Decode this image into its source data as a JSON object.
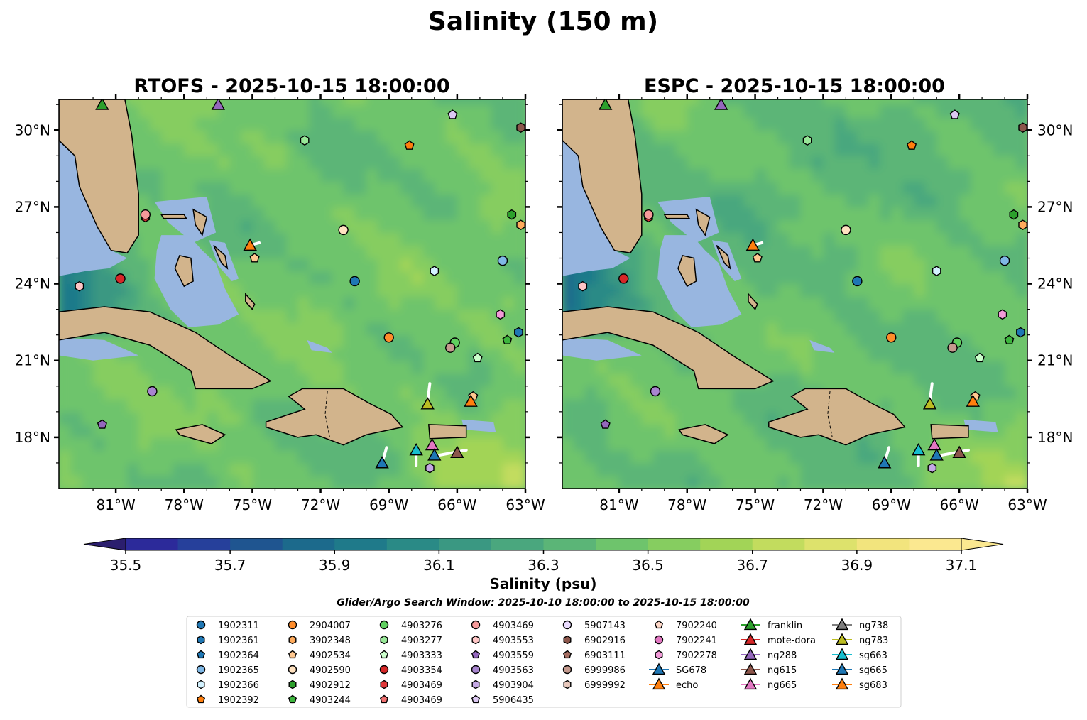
{
  "figure_title": "Salinity (150 m)",
  "chart_data": [
    {
      "type": "heatmap",
      "title": "RTOFS - 2025-10-15 18:00:00",
      "model": "RTOFS",
      "xlim": [
        -83,
        -63
      ],
      "ylim": [
        16,
        31
      ],
      "x_ticks": [
        "81°W",
        "78°W",
        "75°W",
        "72°W",
        "69°W",
        "66°W",
        "63°W"
      ],
      "y_ticks": [
        "30°N",
        "27°N",
        "24°N",
        "21°N",
        "18°N"
      ],
      "y_tick_side": "left",
      "field": "salinity at 150 m, mostly 36.5–37.0 psu"
    },
    {
      "type": "heatmap",
      "title": "ESPC - 2025-10-15 18:00:00",
      "model": "ESPC",
      "xlim": [
        -83,
        -63
      ],
      "ylim": [
        16,
        31
      ],
      "x_ticks": [
        "81°W",
        "78°W",
        "75°W",
        "72°W",
        "69°W",
        "66°W",
        "63°W"
      ],
      "y_ticks": [
        "30°N",
        "27°N",
        "24°N",
        "21°N",
        "18°N"
      ],
      "y_tick_side": "right",
      "field": "salinity at 150 m, mostly 36.5–36.9 psu"
    }
  ],
  "colorbar": {
    "label": "Salinity (psu)",
    "range": [
      35.5,
      37.1
    ],
    "ticks": [
      "35.5",
      "35.7",
      "35.9",
      "36.1",
      "36.3",
      "36.5",
      "36.7",
      "36.9",
      "37.1"
    ],
    "extend": "both",
    "colors": [
      "#2b1e6e",
      "#2c2a9a",
      "#26409b",
      "#1f5590",
      "#1c6a8c",
      "#1f7a8a",
      "#2a8a86",
      "#3a9882",
      "#4aa77e",
      "#5bb577",
      "#6ec46c",
      "#86cd60",
      "#a2d457",
      "#c2dc5e",
      "#dde26c",
      "#f2e47d",
      "#fbe890"
    ]
  },
  "search_window": "Glider/Argo Search Window: 2025-10-10 18:00:00 to 2025-10-15 18:00:00",
  "legend": [
    {
      "label": "1902311",
      "color": "#1f77b4",
      "marker": "circle"
    },
    {
      "label": "1902361",
      "color": "#1f77b4",
      "marker": "hexagon"
    },
    {
      "label": "1902364",
      "color": "#1f77b4",
      "marker": "pentagon"
    },
    {
      "label": "1902365",
      "color": "#7fb8e6",
      "marker": "circle"
    },
    {
      "label": "1902366",
      "color": "#d3f2ff",
      "marker": "hexagon"
    },
    {
      "label": "1902392",
      "color": "#ff7f0e",
      "marker": "pentagon"
    },
    {
      "label": "2904007",
      "color": "#ff8c2a",
      "marker": "circle"
    },
    {
      "label": "3902348",
      "color": "#ffab5c",
      "marker": "hexagon"
    },
    {
      "label": "4902534",
      "color": "#ffc890",
      "marker": "pentagon"
    },
    {
      "label": "4902590",
      "color": "#ffe2c0",
      "marker": "circle"
    },
    {
      "label": "4902912",
      "color": "#2ca02c",
      "marker": "hexagon"
    },
    {
      "label": "4903244",
      "color": "#3db53d",
      "marker": "pentagon"
    },
    {
      "label": "4903276",
      "color": "#5fd05f",
      "marker": "circle"
    },
    {
      "label": "4903277",
      "color": "#98e898",
      "marker": "hexagon"
    },
    {
      "label": "4903333",
      "color": "#ccffcc",
      "marker": "pentagon"
    },
    {
      "label": "4903354",
      "color": "#d62728",
      "marker": "circle"
    },
    {
      "label": "4903469",
      "color": "#e0383a",
      "marker": "hexagon"
    },
    {
      "label": "4903469",
      "color": "#f07070",
      "marker": "pentagon"
    },
    {
      "label": "4903469",
      "color": "#f59a9a",
      "marker": "circle"
    },
    {
      "label": "4903553",
      "color": "#ffc6c6",
      "marker": "hexagon"
    },
    {
      "label": "4903559",
      "color": "#9467bd",
      "marker": "pentagon"
    },
    {
      "label": "4903563",
      "color": "#a885cf",
      "marker": "circle"
    },
    {
      "label": "4903904",
      "color": "#c4a8e4",
      "marker": "hexagon"
    },
    {
      "label": "5906435",
      "color": "#dcc8f2",
      "marker": "pentagon"
    },
    {
      "label": "5907143",
      "color": "#eadcff",
      "marker": "circle"
    },
    {
      "label": "6902916",
      "color": "#8c564b",
      "marker": "hexagon"
    },
    {
      "label": "6903111",
      "color": "#a66e62",
      "marker": "pentagon"
    },
    {
      "label": "6999986",
      "color": "#c49a8e",
      "marker": "circle"
    },
    {
      "label": "6999992",
      "color": "#e8c8bc",
      "marker": "hexagon"
    },
    {
      "label": "7902240",
      "color": "#ffd8c8",
      "marker": "pentagon"
    },
    {
      "label": "7902241",
      "color": "#e377c2",
      "marker": "circle"
    },
    {
      "label": "7902278",
      "color": "#f29ad8",
      "marker": "hexagon"
    },
    {
      "label": "SG678",
      "color": "#1f77b4",
      "marker": "triangle",
      "line": true
    },
    {
      "label": "echo",
      "color": "#ff7f0e",
      "marker": "triangle",
      "line": true
    },
    {
      "label": "franklin",
      "color": "#2ca02c",
      "marker": "triangle",
      "line": true
    },
    {
      "label": "mote-dora",
      "color": "#d62728",
      "marker": "triangle",
      "line": true
    },
    {
      "label": "ng288",
      "color": "#9467bd",
      "marker": "triangle",
      "line": true
    },
    {
      "label": "ng615",
      "color": "#8c564b",
      "marker": "triangle",
      "line": true
    },
    {
      "label": "ng665",
      "color": "#e377c2",
      "marker": "triangle",
      "line": true
    },
    {
      "label": "ng738",
      "color": "#7f7f7f",
      "marker": "triangle",
      "line": true
    },
    {
      "label": "ng783",
      "color": "#bcbd22",
      "marker": "triangle",
      "line": true
    },
    {
      "label": "sg663",
      "color": "#17becf",
      "marker": "triangle",
      "line": true
    },
    {
      "label": "sg665",
      "color": "#1f77b4",
      "marker": "triangle",
      "line": true
    },
    {
      "label": "sg683",
      "color": "#ff7f0e",
      "marker": "triangle",
      "line": true
    }
  ],
  "platforms": [
    {
      "lon": -70.5,
      "lat": 24.1,
      "color": "#1f77b4",
      "marker": "circle"
    },
    {
      "lon": -63.3,
      "lat": 22.1,
      "color": "#1f77b4",
      "marker": "hexagon"
    },
    {
      "lon": -64.0,
      "lat": 24.9,
      "color": "#7fb8e6",
      "marker": "circle"
    },
    {
      "lon": -67.0,
      "lat": 24.5,
      "color": "#d3f2ff",
      "marker": "hexagon"
    },
    {
      "lon": -68.1,
      "lat": 29.4,
      "color": "#ff7f0e",
      "marker": "pentagon"
    },
    {
      "lon": -69.0,
      "lat": 21.9,
      "color": "#ff8c2a",
      "marker": "circle"
    },
    {
      "lon": -63.2,
      "lat": 26.3,
      "color": "#ffab5c",
      "marker": "hexagon"
    },
    {
      "lon": -65.3,
      "lat": 19.6,
      "color": "#ffc890",
      "marker": "pentagon"
    },
    {
      "lon": -74.9,
      "lat": 25.0,
      "color": "#ffc890",
      "marker": "pentagon"
    },
    {
      "lon": -71.0,
      "lat": 26.1,
      "color": "#ffe2c0",
      "marker": "circle"
    },
    {
      "lon": -63.6,
      "lat": 26.7,
      "color": "#2ca02c",
      "marker": "hexagon"
    },
    {
      "lon": -63.8,
      "lat": 21.8,
      "color": "#3db53d",
      "marker": "pentagon"
    },
    {
      "lon": -66.1,
      "lat": 21.7,
      "color": "#5fd05f",
      "marker": "circle"
    },
    {
      "lon": -72.7,
      "lat": 29.6,
      "color": "#98e898",
      "marker": "hexagon"
    },
    {
      "lon": -65.1,
      "lat": 21.1,
      "color": "#ccffcc",
      "marker": "pentagon"
    },
    {
      "lon": -80.8,
      "lat": 24.2,
      "color": "#d62728",
      "marker": "circle"
    },
    {
      "lon": -79.7,
      "lat": 26.6,
      "color": "#e0383a",
      "marker": "hexagon"
    },
    {
      "lon": -79.7,
      "lat": 26.7,
      "color": "#f59a9a",
      "marker": "circle"
    },
    {
      "lon": -82.6,
      "lat": 23.9,
      "color": "#ffc6c6",
      "marker": "hexagon"
    },
    {
      "lon": -81.6,
      "lat": 18.5,
      "color": "#9467bd",
      "marker": "pentagon"
    },
    {
      "lon": -79.4,
      "lat": 19.8,
      "color": "#a885cf",
      "marker": "circle"
    },
    {
      "lon": -67.2,
      "lat": 16.8,
      "color": "#c4a8e4",
      "marker": "hexagon"
    },
    {
      "lon": -66.2,
      "lat": 30.6,
      "color": "#dcc8f2",
      "marker": "pentagon"
    },
    {
      "lon": -63.2,
      "lat": 30.1,
      "color": "#8c564b",
      "marker": "hexagon"
    },
    {
      "lon": -66.3,
      "lat": 21.5,
      "color": "#c49a8e",
      "marker": "circle"
    },
    {
      "lon": -64.1,
      "lat": 22.8,
      "color": "#f29ad8",
      "marker": "hexagon"
    }
  ],
  "gliders": [
    {
      "lon": -69.3,
      "lat": 17.0,
      "color": "#1f77b4"
    },
    {
      "lon": -75.1,
      "lat": 25.5,
      "color": "#ff7f0e"
    },
    {
      "lon": -76.5,
      "lat": 31.0,
      "color": "#9467bd"
    },
    {
      "lon": -66.0,
      "lat": 17.4,
      "color": "#8c564b"
    },
    {
      "lon": -67.1,
      "lat": 17.7,
      "color": "#e377c2"
    },
    {
      "lon": -67.3,
      "lat": 19.3,
      "color": "#bcbd22"
    },
    {
      "lon": -67.8,
      "lat": 17.5,
      "color": "#17becf"
    },
    {
      "lon": -67.0,
      "lat": 17.3,
      "color": "#1f77b4"
    },
    {
      "lon": -65.4,
      "lat": 19.4,
      "color": "#ff7f0e"
    },
    {
      "lon": -81.6,
      "lat": 31.0,
      "color": "#2ca02c"
    }
  ]
}
